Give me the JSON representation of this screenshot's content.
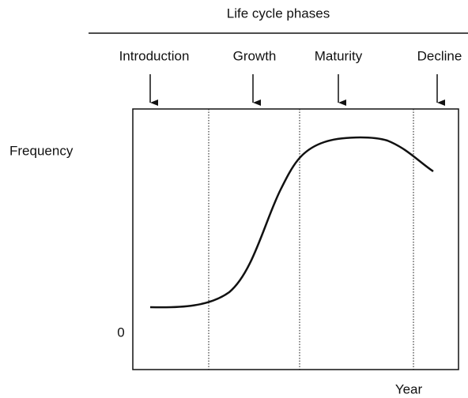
{
  "title": "Life cycle phases",
  "phases": [
    "Introduction",
    "Growth",
    "Maturity",
    "Decline"
  ],
  "y_axis": {
    "label": "Frequency",
    "origin": "0"
  },
  "x_axis": {
    "label": "Year"
  }
}
